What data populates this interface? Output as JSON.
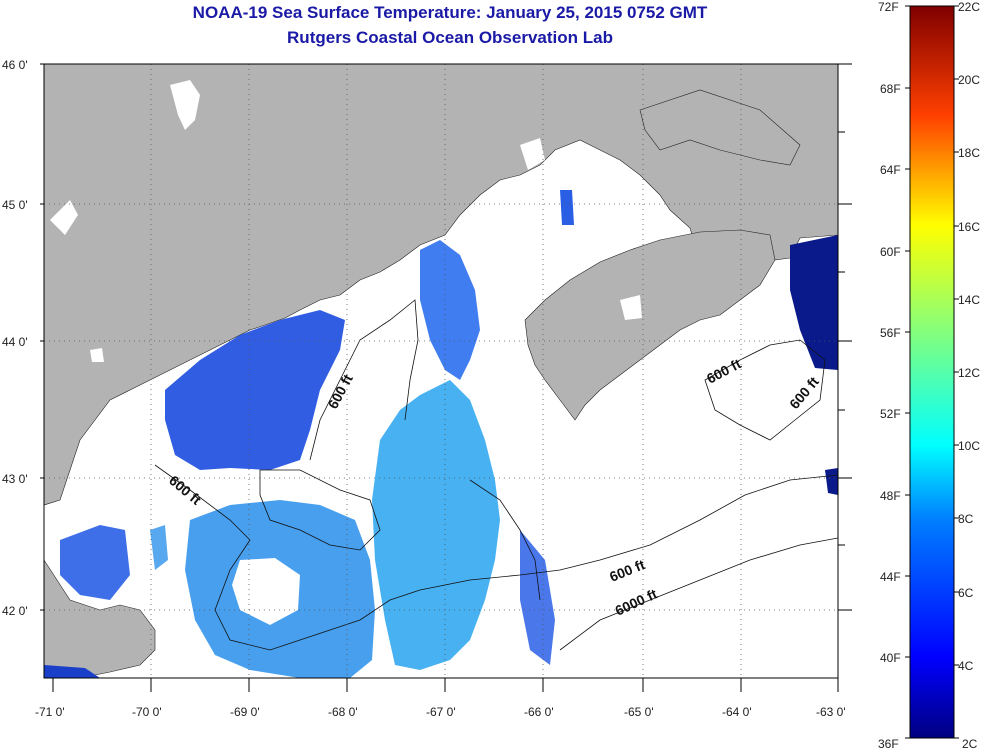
{
  "title": {
    "line1": "NOAA-19 Sea Surface Temperature:  January 25, 2015 0752 GMT",
    "line2": "Rutgers Coastal Ocean Observation Lab"
  },
  "map": {
    "lat_labels": [
      "46 0'",
      "45 0'",
      "44 0'",
      "43 0'",
      "42 0'"
    ],
    "lon_labels": [
      "-71 0'",
      "-70 0'",
      "-69 0'",
      "-68 0'",
      "-67 0'",
      "-66 0'",
      "-65 0'",
      "-64 0'",
      "-63 0'"
    ],
    "contour_labels": [
      "600 ft",
      "600 ft",
      "600 ft",
      "600 ft",
      "600 ft",
      "6000 ft"
    ],
    "colors": {
      "land": "#b3b3b3",
      "no_data": "#ffffff",
      "sst_cold": "#1f4fe0",
      "sst_mid": "#2ea6ef"
    }
  },
  "colorbar": {
    "fahrenheit": [
      "72F",
      "68F",
      "64F",
      "60F",
      "56F",
      "52F",
      "48F",
      "44F",
      "40F",
      "36F"
    ],
    "celsius": [
      "22C",
      "20C",
      "18C",
      "16C",
      "14C",
      "12C",
      "10C",
      "8C",
      "6C",
      "4C",
      "2C"
    ]
  }
}
